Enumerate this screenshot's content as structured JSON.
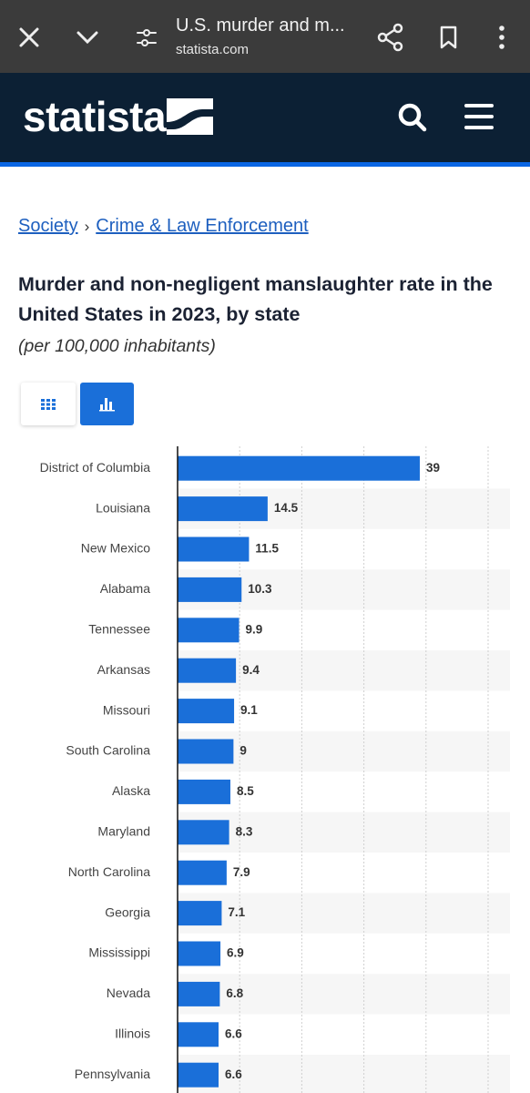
{
  "browser_bar": {
    "title": "U.S. murder and m...",
    "url": "statista.com"
  },
  "site_header": {
    "logo": "statista"
  },
  "breadcrumb": {
    "items": [
      "Society",
      "Crime & Law Enforcement"
    ],
    "separator": "›"
  },
  "chart_data": {
    "type": "bar",
    "orientation": "horizontal",
    "title": "Murder and non-negligent manslaughter rate in the United States in 2023, by state",
    "subtitle": "(per 100,000 inhabitants)",
    "categories": [
      "District of Columbia",
      "Louisiana",
      "New Mexico",
      "Alabama",
      "Tennessee",
      "Arkansas",
      "Missouri",
      "South Carolina",
      "Alaska",
      "Maryland",
      "North Carolina",
      "Georgia",
      "Mississippi",
      "Nevada",
      "Illinois",
      "Pennsylvania"
    ],
    "values": [
      39,
      14.5,
      11.5,
      10.3,
      9.9,
      9.4,
      9.1,
      9,
      8.5,
      8.3,
      7.9,
      7.1,
      6.9,
      6.8,
      6.6,
      6.6
    ],
    "color": "#1a6fd9",
    "xlim": [
      0,
      50
    ],
    "xticks": [
      0,
      10,
      20,
      30,
      40,
      50
    ],
    "grid": true
  }
}
